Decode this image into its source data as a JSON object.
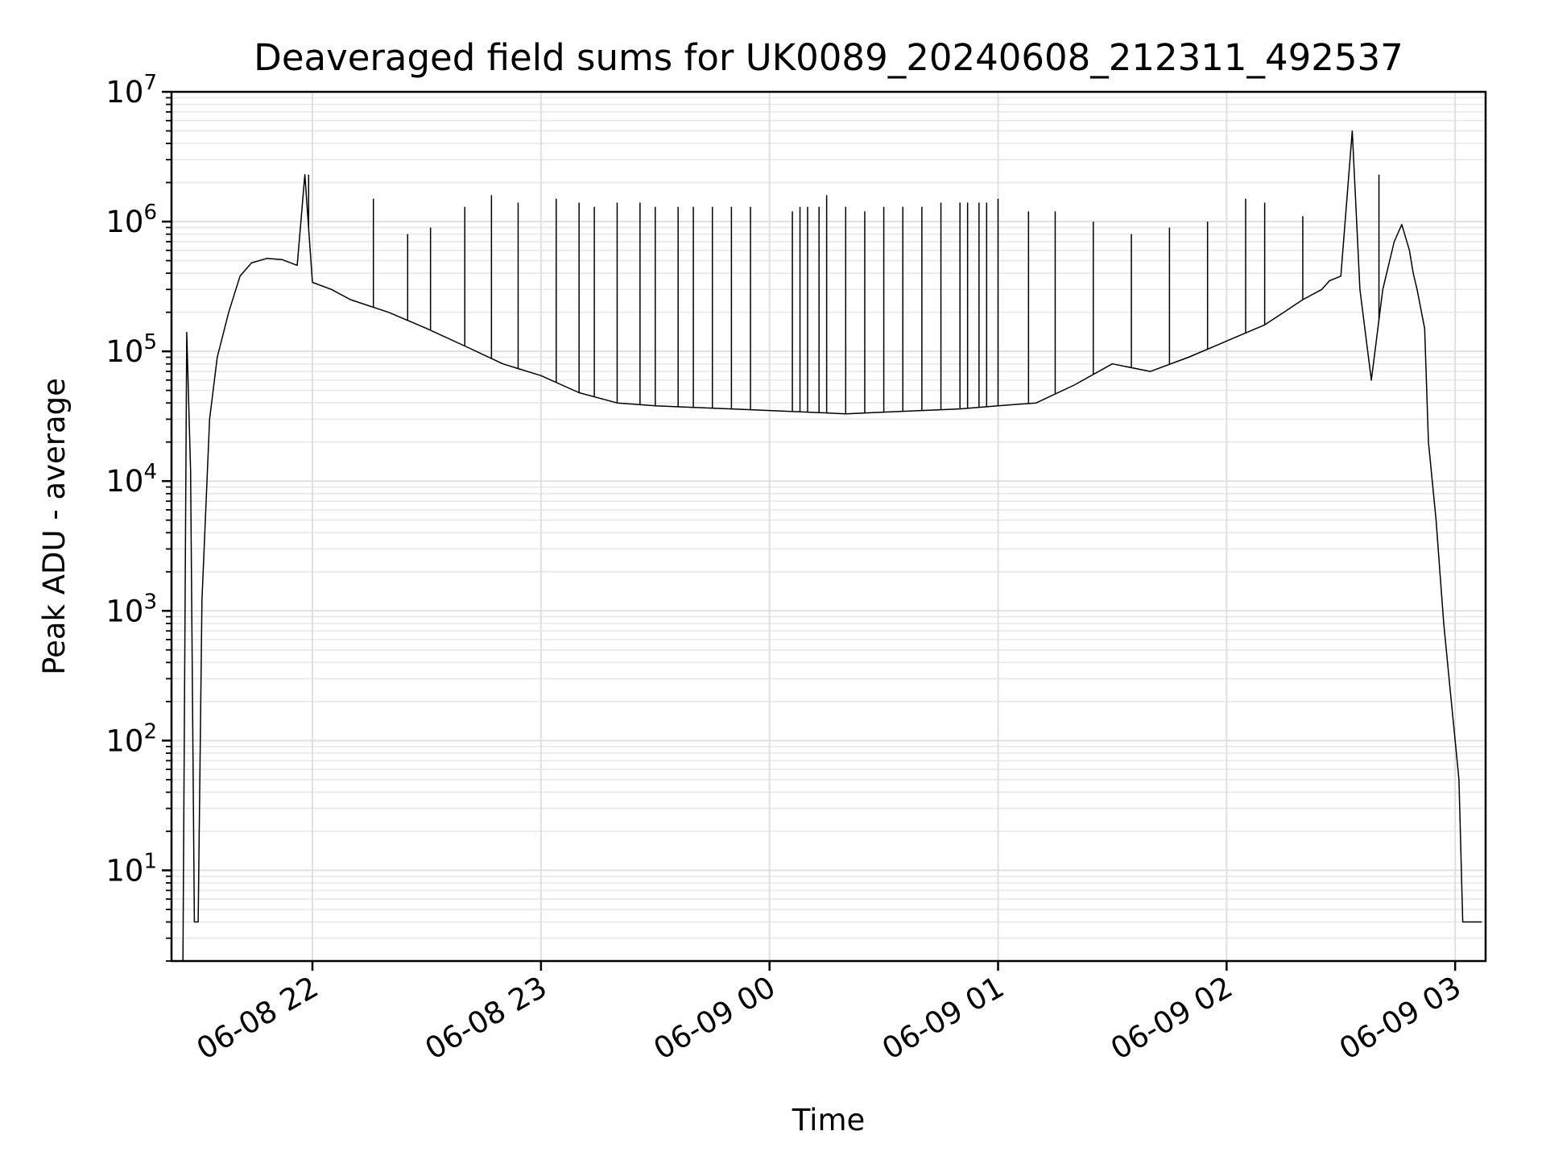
{
  "chart_data": {
    "type": "line",
    "title": "Deaveraged field sums for UK0089_20240608_212311_492537",
    "xlabel": "Time",
    "ylabel": "Peak ADU - average",
    "yscale": "log",
    "ylim": [
      2,
      10000000
    ],
    "xlim": [
      "2024-06-08 21:23",
      "2024-06-09 03:08"
    ],
    "grid": true,
    "line_color": "#000000",
    "x_ticks": [
      {
        "value": "2024-06-08 22:00",
        "label": "06-08 22"
      },
      {
        "value": "2024-06-08 23:00",
        "label": "06-08 23"
      },
      {
        "value": "2024-06-09 00:00",
        "label": "06-09 00"
      },
      {
        "value": "2024-06-09 01:00",
        "label": "06-09 01"
      },
      {
        "value": "2024-06-09 02:00",
        "label": "06-09 02"
      },
      {
        "value": "2024-06-09 03:00",
        "label": "06-09 03"
      }
    ],
    "y_ticks": [
      {
        "value": 10,
        "base": "10",
        "exp": "1"
      },
      {
        "value": 100,
        "base": "10",
        "exp": "2"
      },
      {
        "value": 1000,
        "base": "10",
        "exp": "3"
      },
      {
        "value": 10000,
        "base": "10",
        "exp": "4"
      },
      {
        "value": 100000,
        "base": "10",
        "exp": "5"
      },
      {
        "value": 1000000,
        "base": "10",
        "exp": "6"
      },
      {
        "value": 10000000,
        "base": "10",
        "exp": "7"
      }
    ],
    "series": [
      {
        "x": [
          "2024-06-08 21:26",
          "2024-06-08 21:27",
          "2024-06-08 21:28",
          "2024-06-08 21:29",
          "2024-06-08 21:30",
          "2024-06-08 21:31",
          "2024-06-08 21:33",
          "2024-06-08 21:35",
          "2024-06-08 21:38",
          "2024-06-08 21:41",
          "2024-06-08 21:44",
          "2024-06-08 21:48",
          "2024-06-08 21:52",
          "2024-06-08 21:56",
          "2024-06-08 21:58",
          "2024-06-08 22:00",
          "2024-06-08 22:05",
          "2024-06-08 22:10",
          "2024-06-08 22:20",
          "2024-06-08 22:30",
          "2024-06-08 22:40",
          "2024-06-08 22:50",
          "2024-06-08 23:00",
          "2024-06-08 23:10",
          "2024-06-08 23:20",
          "2024-06-08 23:30",
          "2024-06-08 23:40",
          "2024-06-08 23:50",
          "2024-06-09 00:00",
          "2024-06-09 00:10",
          "2024-06-09 00:20",
          "2024-06-09 00:30",
          "2024-06-09 00:40",
          "2024-06-09 00:50",
          "2024-06-09 01:00",
          "2024-06-09 01:10",
          "2024-06-09 01:20",
          "2024-06-09 01:30",
          "2024-06-09 01:40",
          "2024-06-09 01:50",
          "2024-06-09 02:00",
          "2024-06-09 02:10",
          "2024-06-09 02:15",
          "2024-06-09 02:20",
          "2024-06-09 02:25",
          "2024-06-09 02:27",
          "2024-06-09 02:30",
          "2024-06-09 02:33",
          "2024-06-09 02:35",
          "2024-06-09 02:38",
          "2024-06-09 02:41",
          "2024-06-09 02:44",
          "2024-06-09 02:46",
          "2024-06-09 02:48",
          "2024-06-09 02:49",
          "2024-06-09 02:50",
          "2024-06-09 02:52",
          "2024-06-09 02:53",
          "2024-06-09 02:55",
          "2024-06-09 02:56",
          "2024-06-09 02:57",
          "2024-06-09 02:58",
          "2024-06-09 02:59",
          "2024-06-09 03:00",
          "2024-06-09 03:01",
          "2024-06-09 03:02",
          "2024-06-09 03:03",
          "2024-06-09 03:05",
          "2024-06-09 03:07"
        ],
        "y": [
          2,
          140000,
          12000,
          4,
          4,
          1200,
          30000,
          90000,
          200000,
          380000,
          480000,
          520000,
          510000,
          460000,
          2300000,
          340000,
          300000,
          250000,
          200000,
          150000,
          110000,
          80000,
          65000,
          48000,
          40000,
          38000,
          37000,
          36000,
          35000,
          34000,
          33000,
          34000,
          35000,
          36000,
          38000,
          40000,
          55000,
          80000,
          70000,
          90000,
          120000,
          160000,
          200000,
          250000,
          300000,
          350000,
          380000,
          5000000,
          300000,
          60000,
          300000,
          700000,
          950000,
          600000,
          400000,
          300000,
          150000,
          20000,
          5000,
          2000,
          800,
          400,
          200,
          100,
          50,
          4,
          4,
          4,
          4
        ]
      }
    ],
    "spikes": {
      "x": [
        "2024-06-08 21:59",
        "2024-06-08 22:16",
        "2024-06-08 22:25",
        "2024-06-08 22:31",
        "2024-06-08 22:40",
        "2024-06-08 22:47",
        "2024-06-08 22:54",
        "2024-06-08 23:04",
        "2024-06-08 23:10",
        "2024-06-08 23:14",
        "2024-06-08 23:20",
        "2024-06-08 23:26",
        "2024-06-08 23:30",
        "2024-06-08 23:36",
        "2024-06-08 23:40",
        "2024-06-08 23:45",
        "2024-06-08 23:50",
        "2024-06-08 23:55",
        "2024-06-09 00:06",
        "2024-06-09 00:08",
        "2024-06-09 00:10",
        "2024-06-09 00:13",
        "2024-06-09 00:15",
        "2024-06-09 00:20",
        "2024-06-09 00:25",
        "2024-06-09 00:30",
        "2024-06-09 00:35",
        "2024-06-09 00:40",
        "2024-06-09 00:45",
        "2024-06-09 00:50",
        "2024-06-09 00:52",
        "2024-06-09 00:55",
        "2024-06-09 00:57",
        "2024-06-09 01:00",
        "2024-06-09 01:08",
        "2024-06-09 01:15",
        "2024-06-09 01:25",
        "2024-06-09 01:35",
        "2024-06-09 01:45",
        "2024-06-09 01:55",
        "2024-06-09 02:05",
        "2024-06-09 02:10",
        "2024-06-09 02:20",
        "2024-06-09 02:40"
      ],
      "y": [
        2300000,
        1500000,
        800000,
        900000,
        1300000,
        1600000,
        1400000,
        1500000,
        1400000,
        1300000,
        1400000,
        1400000,
        1300000,
        1300000,
        1300000,
        1300000,
        1300000,
        1300000,
        1200000,
        1300000,
        1300000,
        1300000,
        1600000,
        1300000,
        1200000,
        1300000,
        1300000,
        1300000,
        1400000,
        1400000,
        1400000,
        1400000,
        1400000,
        1500000,
        1200000,
        1200000,
        1000000,
        800000,
        900000,
        1000000,
        1500000,
        1400000,
        1100000,
        2300000
      ]
    }
  }
}
